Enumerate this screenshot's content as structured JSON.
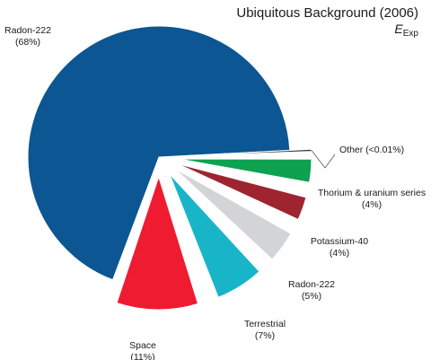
{
  "chart_data": {
    "type": "pie",
    "title": "Ubiquitous Background (2006)",
    "subtitle_main": "E",
    "subtitle_sub": "Exp",
    "slices": [
      {
        "name": "Radon-222",
        "pct_label": "(68%)",
        "value": 68,
        "color": "#0b5693"
      },
      {
        "name": "Space",
        "pct_label": "(11%)",
        "value": 11,
        "color": "#ef1b31"
      },
      {
        "name": "Terrestrial",
        "pct_label": "(7%)",
        "value": 7,
        "color": "#18b5c9"
      },
      {
        "name": "Radon-222",
        "pct_label": "(5%)",
        "value": 5,
        "color": "#d2d4d7"
      },
      {
        "name": "Potassium-40",
        "pct_label": "(4%)",
        "value": 4,
        "color": "#9e2530"
      },
      {
        "name": "Thorium & uranium series",
        "pct_label": "(4%)",
        "value": 4,
        "color": "#0ca24f"
      },
      {
        "name": "Other (<0.01%)",
        "pct_label": "",
        "value": 0.01,
        "color": "#333333"
      }
    ]
  }
}
